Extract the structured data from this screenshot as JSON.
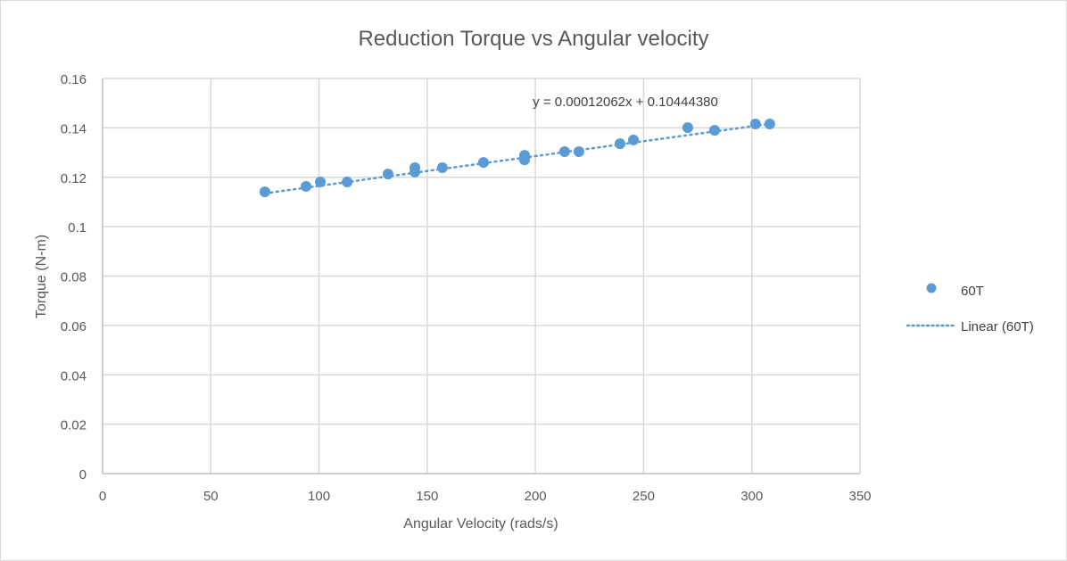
{
  "chart_data": {
    "type": "scatter",
    "title": "Reduction Torque vs Angular velocity",
    "xlabel": "Angular Velocity (rads/s)",
    "ylabel": "Torque (N-m)",
    "xlim": [
      0,
      350
    ],
    "ylim": [
      0,
      0.16
    ],
    "x_ticks": [
      "0",
      "50",
      "100",
      "150",
      "200",
      "250",
      "300",
      "350"
    ],
    "y_ticks": [
      "0",
      "0.02",
      "0.04",
      "0.06",
      "0.08",
      "0.1",
      "0.12",
      "0.14",
      "0.16"
    ],
    "x_tick_values": [
      0,
      50,
      100,
      150,
      200,
      250,
      300,
      350
    ],
    "y_tick_values": [
      0,
      0.02,
      0.04,
      0.06,
      0.08,
      0.1,
      0.12,
      0.14,
      0.16
    ],
    "grid": true,
    "legend_position": "right",
    "series": [
      {
        "name": "60T",
        "color": "#5b9bd5",
        "points": [
          {
            "x": 75.0,
            "y": 0.1141
          },
          {
            "x": 94.0,
            "y": 0.1163
          },
          {
            "x": 100.6,
            "y": 0.1181
          },
          {
            "x": 113.0,
            "y": 0.1181
          },
          {
            "x": 131.9,
            "y": 0.1213
          },
          {
            "x": 144.3,
            "y": 0.1239
          },
          {
            "x": 144.3,
            "y": 0.1221
          },
          {
            "x": 157.0,
            "y": 0.1239
          },
          {
            "x": 176.0,
            "y": 0.126
          },
          {
            "x": 195.0,
            "y": 0.1289
          },
          {
            "x": 195.0,
            "y": 0.1271
          },
          {
            "x": 213.5,
            "y": 0.1304
          },
          {
            "x": 220.1,
            "y": 0.1304
          },
          {
            "x": 239.1,
            "y": 0.1336
          },
          {
            "x": 245.3,
            "y": 0.1351
          },
          {
            "x": 270.4,
            "y": 0.1401
          },
          {
            "x": 282.8,
            "y": 0.139
          },
          {
            "x": 301.7,
            "y": 0.1416
          },
          {
            "x": 308.3,
            "y": 0.1416
          }
        ]
      }
    ],
    "trendline": {
      "name": "Linear (60T)",
      "type": "linear",
      "slope": 0.00012062,
      "intercept": 0.1044438,
      "x_range": [
        75.0,
        308.3
      ],
      "color": "#5b9bd5",
      "equation_label": "y = 0.00012062x + 0.10444380"
    },
    "legend": [
      "60T",
      "Linear (60T)"
    ]
  }
}
